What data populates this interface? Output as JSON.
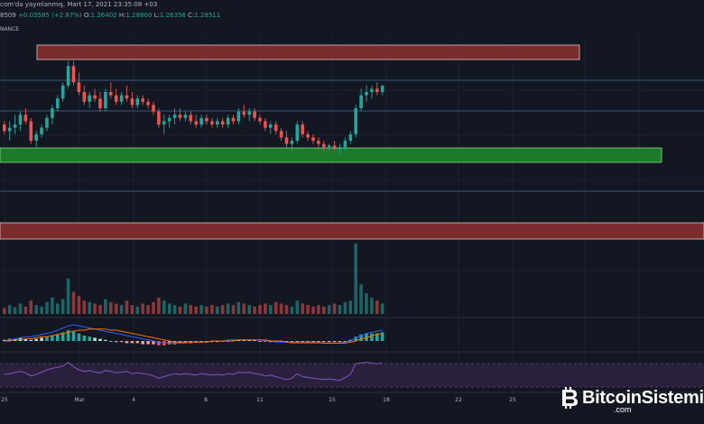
{
  "header": {
    "line1": "com'da yayınlanmış, Mart 17, 2021 23:35:08 +03",
    "line2_prefix": "8509",
    "line2_change": "+0.03585 (+2.87%)",
    "o_label": "O:",
    "o_value": "1.26402",
    "h_label": "H:",
    "h_value": "1.28800",
    "l_label": "L:",
    "l_value": "1.26356",
    "c_label": "C:",
    "c_value": "1.28511",
    "line3": "NANCE"
  },
  "colors": {
    "background": "#131722",
    "up": "#26a69a",
    "down": "#ef5350",
    "resistance_zone": "#7b2d2d",
    "support_zone": "#1d7a2a",
    "rsi": "#7e57c2"
  },
  "chart_data": {
    "type": "candlestick",
    "x_ticks": [
      "25",
      "Mar",
      "4",
      "8",
      "11",
      "15",
      "18",
      "22",
      "25"
    ],
    "price_range": [
      0,
      100
    ],
    "candles": [
      [
        60,
        62,
        54,
        56
      ],
      [
        56,
        62,
        50,
        58
      ],
      [
        58,
        66,
        54,
        60
      ],
      [
        60,
        68,
        56,
        66
      ],
      [
        66,
        70,
        60,
        62
      ],
      [
        62,
        64,
        48,
        50
      ],
      [
        50,
        56,
        46,
        54
      ],
      [
        54,
        60,
        52,
        58
      ],
      [
        58,
        66,
        56,
        64
      ],
      [
        64,
        72,
        60,
        70
      ],
      [
        70,
        78,
        68,
        76
      ],
      [
        76,
        86,
        74,
        84
      ],
      [
        84,
        99,
        82,
        96
      ],
      [
        96,
        99,
        84,
        86
      ],
      [
        86,
        92,
        78,
        80
      ],
      [
        80,
        84,
        72,
        74
      ],
      [
        74,
        80,
        70,
        78
      ],
      [
        78,
        82,
        74,
        76
      ],
      [
        76,
        80,
        68,
        70
      ],
      [
        70,
        82,
        68,
        80
      ],
      [
        80,
        86,
        76,
        78
      ],
      [
        78,
        82,
        72,
        74
      ],
      [
        74,
        80,
        72,
        78
      ],
      [
        78,
        84,
        74,
        76
      ],
      [
        76,
        80,
        70,
        72
      ],
      [
        72,
        78,
        70,
        76
      ],
      [
        76,
        78,
        72,
        74
      ],
      [
        74,
        76,
        70,
        72
      ],
      [
        72,
        74,
        66,
        68
      ],
      [
        68,
        70,
        58,
        60
      ],
      [
        60,
        66,
        54,
        62
      ],
      [
        62,
        66,
        58,
        64
      ],
      [
        64,
        70,
        60,
        66
      ],
      [
        66,
        70,
        62,
        64
      ],
      [
        64,
        68,
        62,
        66
      ],
      [
        66,
        68,
        60,
        62
      ],
      [
        62,
        66,
        58,
        60
      ],
      [
        60,
        66,
        58,
        64
      ],
      [
        64,
        66,
        60,
        62
      ],
      [
        62,
        64,
        58,
        60
      ],
      [
        60,
        64,
        58,
        62
      ],
      [
        62,
        64,
        58,
        60
      ],
      [
        60,
        66,
        58,
        64
      ],
      [
        64,
        66,
        60,
        62
      ],
      [
        62,
        70,
        60,
        68
      ],
      [
        68,
        72,
        64,
        66
      ],
      [
        66,
        70,
        62,
        68
      ],
      [
        68,
        70,
        62,
        64
      ],
      [
        64,
        66,
        60,
        62
      ],
      [
        62,
        64,
        56,
        58
      ],
      [
        58,
        62,
        54,
        60
      ],
      [
        60,
        62,
        54,
        56
      ],
      [
        56,
        58,
        50,
        52
      ],
      [
        52,
        56,
        46,
        48
      ],
      [
        48,
        52,
        44,
        50
      ],
      [
        50,
        62,
        48,
        60
      ],
      [
        60,
        62,
        52,
        54
      ],
      [
        54,
        56,
        50,
        52
      ],
      [
        52,
        54,
        48,
        50
      ],
      [
        50,
        52,
        46,
        48
      ],
      [
        48,
        50,
        44,
        46
      ],
      [
        46,
        48,
        44,
        47
      ],
      [
        47,
        50,
        44,
        45
      ],
      [
        45,
        48,
        42,
        46
      ],
      [
        46,
        52,
        44,
        50
      ],
      [
        50,
        56,
        48,
        54
      ],
      [
        54,
        72,
        52,
        70
      ],
      [
        70,
        82,
        68,
        78
      ],
      [
        78,
        84,
        74,
        80
      ],
      [
        80,
        84,
        76,
        82
      ],
      [
        82,
        86,
        78,
        80
      ],
      [
        80,
        84,
        78,
        84
      ]
    ],
    "volumes": [
      8,
      12,
      9,
      14,
      10,
      18,
      12,
      10,
      16,
      22,
      14,
      20,
      48,
      30,
      24,
      18,
      16,
      14,
      12,
      20,
      16,
      14,
      12,
      18,
      12,
      10,
      14,
      12,
      16,
      22,
      18,
      14,
      12,
      10,
      14,
      12,
      10,
      12,
      10,
      12,
      10,
      12,
      14,
      12,
      16,
      14,
      12,
      10,
      12,
      14,
      12,
      16,
      14,
      12,
      10,
      18,
      14,
      12,
      10,
      12,
      10,
      12,
      14,
      12,
      16,
      18,
      95,
      40,
      28,
      22,
      18,
      14
    ],
    "macd_hist": [
      1,
      2,
      2,
      3,
      2,
      1,
      2,
      3,
      4,
      5,
      6,
      8,
      10,
      9,
      7,
      5,
      4,
      3,
      2,
      1,
      0,
      -1,
      -1,
      -2,
      -2,
      -2,
      -3,
      -3,
      -3,
      -4,
      -4,
      -3,
      -3,
      -2,
      -2,
      -2,
      -1,
      -1,
      -1,
      -1,
      -1,
      0,
      0,
      1,
      1,
      1,
      1,
      1,
      0,
      0,
      -1,
      -1,
      -1,
      -1,
      -1,
      -1,
      -1,
      -1,
      -1,
      -1,
      -1,
      -1,
      -1,
      -1,
      0,
      1,
      4,
      6,
      7,
      7,
      7,
      8
    ],
    "macd_line": [
      0,
      1,
      2,
      3,
      4,
      4,
      5,
      6,
      7,
      8,
      10,
      12,
      14,
      15,
      14,
      13,
      12,
      11,
      10,
      9,
      8,
      7,
      6,
      5,
      4,
      3,
      2,
      1,
      0,
      -1,
      -2,
      -2,
      -2,
      -2,
      -2,
      -1,
      -1,
      -1,
      -1,
      0,
      0,
      0,
      1,
      1,
      1,
      1,
      1,
      1,
      1,
      0,
      0,
      -1,
      -1,
      -1,
      -2,
      -2,
      -2,
      -2,
      -2,
      -2,
      -2,
      -2,
      -2,
      -2,
      -1,
      0,
      3,
      5,
      7,
      8,
      9,
      10
    ],
    "signal_line": [
      0,
      0,
      1,
      1,
      2,
      2,
      3,
      4,
      4,
      5,
      6,
      7,
      8,
      9,
      10,
      10,
      11,
      11,
      11,
      11,
      10,
      10,
      9,
      8,
      7,
      6,
      5,
      4,
      3,
      2,
      1,
      0,
      -1,
      -1,
      -1,
      -1,
      -1,
      -1,
      -1,
      0,
      0,
      0,
      0,
      0,
      1,
      1,
      1,
      1,
      1,
      1,
      0,
      0,
      0,
      -1,
      -1,
      -1,
      -1,
      -1,
      -1,
      -1,
      -2,
      -2,
      -2,
      -2,
      -2,
      -1,
      0,
      2,
      3,
      5,
      6,
      7
    ],
    "rsi": [
      50,
      52,
      55,
      58,
      54,
      46,
      50,
      56,
      62,
      66,
      68,
      72,
      82,
      70,
      62,
      58,
      60,
      56,
      54,
      60,
      58,
      54,
      56,
      58,
      52,
      54,
      52,
      50,
      46,
      40,
      44,
      48,
      52,
      50,
      52,
      50,
      48,
      52,
      50,
      48,
      50,
      48,
      52,
      50,
      56,
      54,
      56,
      52,
      50,
      46,
      48,
      44,
      40,
      36,
      40,
      52,
      44,
      42,
      40,
      38,
      36,
      38,
      36,
      34,
      42,
      50,
      78,
      80,
      82,
      80,
      78,
      80
    ]
  }
}
